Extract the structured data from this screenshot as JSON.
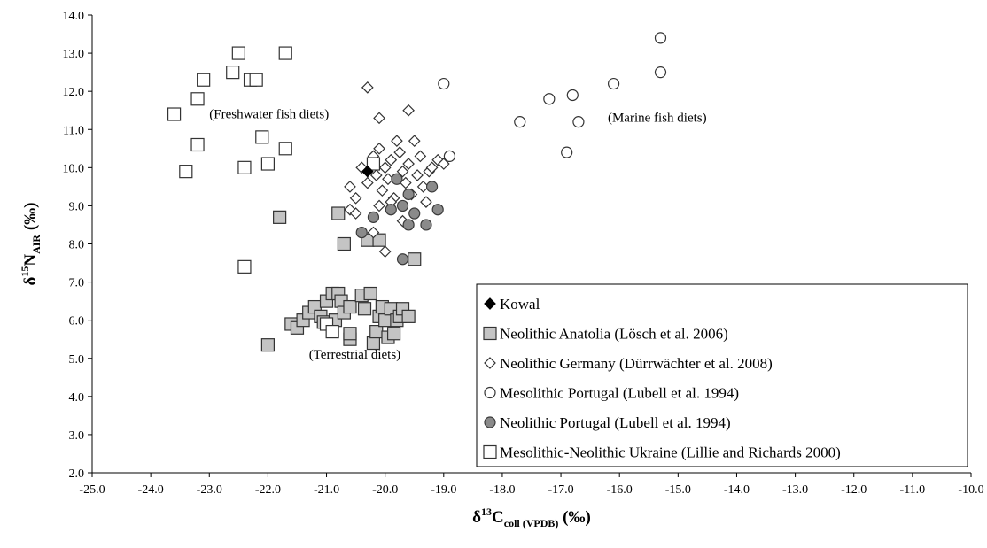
{
  "chart_data": {
    "type": "scatter",
    "title": "",
    "xlabel": {
      "base": "δ",
      "sup": "13",
      "main": "C",
      "sub": "coll (VPDB)",
      "unit": " (‰)"
    },
    "ylabel": {
      "base": "δ",
      "sup": "15",
      "main": "N",
      "sub": "AIR",
      "unit": " (‰)"
    },
    "xlim": [
      -25.0,
      -10.0
    ],
    "ylim": [
      2.0,
      14.0
    ],
    "x_ticks": [
      "-25.0",
      "-24.0",
      "-23.0",
      "-22.0",
      "-21.0",
      "-20.0",
      "-19.0",
      "-18.0",
      "-17.0",
      "-16.0",
      "-15.0",
      "-14.0",
      "-13.0",
      "-12.0",
      "-11.0",
      "-10.0"
    ],
    "y_ticks": [
      "2.0",
      "3.0",
      "4.0",
      "5.0",
      "6.0",
      "7.0",
      "8.0",
      "9.0",
      "10.0",
      "11.0",
      "12.0",
      "13.0",
      "14.0"
    ],
    "grid": false,
    "legend_position": "bottom-right",
    "annotations": [
      {
        "text": "(Freshwater fish diets)",
        "x": -23.0,
        "y": 11.3
      },
      {
        "text": "(Marine fish diets)",
        "x": -16.2,
        "y": 11.2
      },
      {
        "text": "(Terrestrial diets)",
        "x": -21.3,
        "y": 5.0
      }
    ],
    "series": [
      {
        "name": "Kowal",
        "marker": "diamond",
        "fill": "#000000",
        "stroke": "#000000",
        "points": [
          [
            -20.3,
            9.9
          ]
        ]
      },
      {
        "name": "Neolithic Anatolia (Lösch et al. 2006)",
        "marker": "square",
        "fill": "#c4c4c4",
        "stroke": "#333333",
        "points": [
          [
            -21.8,
            8.7
          ],
          [
            -20.8,
            8.8
          ],
          [
            -20.7,
            8.0
          ],
          [
            -20.3,
            8.1
          ],
          [
            -20.1,
            8.1
          ],
          [
            -19.5,
            7.6
          ],
          [
            -22.0,
            5.35
          ],
          [
            -21.6,
            5.9
          ],
          [
            -21.5,
            5.8
          ],
          [
            -21.4,
            6.0
          ],
          [
            -21.3,
            6.2
          ],
          [
            -21.2,
            6.35
          ],
          [
            -21.1,
            6.1
          ],
          [
            -21.05,
            5.95
          ],
          [
            -21.0,
            6.5
          ],
          [
            -20.9,
            6.7
          ],
          [
            -20.85,
            6.0
          ],
          [
            -20.8,
            6.7
          ],
          [
            -20.75,
            6.5
          ],
          [
            -20.7,
            6.2
          ],
          [
            -20.6,
            6.35
          ],
          [
            -20.6,
            5.5
          ],
          [
            -20.6,
            5.65
          ],
          [
            -20.4,
            6.65
          ],
          [
            -20.35,
            6.3
          ],
          [
            -20.25,
            6.7
          ],
          [
            -20.2,
            5.4
          ],
          [
            -20.15,
            5.7
          ],
          [
            -20.1,
            6.1
          ],
          [
            -20.05,
            6.35
          ],
          [
            -20.0,
            6.0
          ],
          [
            -19.95,
            5.55
          ],
          [
            -19.9,
            6.3
          ],
          [
            -19.85,
            5.65
          ],
          [
            -19.8,
            6.0
          ],
          [
            -19.75,
            6.1
          ],
          [
            -19.7,
            6.3
          ],
          [
            -19.6,
            6.1
          ]
        ]
      },
      {
        "name": "Neolithic Germany (Dürrwächter et al. 2008)",
        "marker": "diamond-open",
        "fill": "#ffffff",
        "stroke": "#333333",
        "points": [
          [
            -20.3,
            12.1
          ],
          [
            -20.1,
            11.3
          ],
          [
            -19.6,
            11.5
          ],
          [
            -20.6,
            9.5
          ],
          [
            -20.5,
            9.2
          ],
          [
            -20.4,
            10.0
          ],
          [
            -20.3,
            9.6
          ],
          [
            -20.2,
            10.3
          ],
          [
            -20.15,
            9.8
          ],
          [
            -20.1,
            10.5
          ],
          [
            -20.05,
            9.4
          ],
          [
            -20.0,
            10.0
          ],
          [
            -19.95,
            9.7
          ],
          [
            -19.9,
            10.2
          ],
          [
            -19.85,
            9.2
          ],
          [
            -19.8,
            10.7
          ],
          [
            -19.75,
            10.4
          ],
          [
            -19.7,
            9.9
          ],
          [
            -19.65,
            9.6
          ],
          [
            -19.6,
            10.1
          ],
          [
            -19.55,
            9.3
          ],
          [
            -19.5,
            10.7
          ],
          [
            -19.45,
            9.8
          ],
          [
            -19.4,
            10.3
          ],
          [
            -19.35,
            9.5
          ],
          [
            -19.3,
            9.1
          ],
          [
            -19.25,
            9.9
          ],
          [
            -19.2,
            10.0
          ],
          [
            -19.1,
            10.2
          ],
          [
            -19.0,
            10.1
          ],
          [
            -20.6,
            8.9
          ],
          [
            -20.5,
            8.8
          ],
          [
            -20.0,
            7.8
          ],
          [
            -20.2,
            8.3
          ],
          [
            -19.7,
            8.6
          ],
          [
            -20.1,
            9.0
          ],
          [
            -19.9,
            9.1
          ]
        ]
      },
      {
        "name": "Mesolithic Portugal (Lubell et al. 1994)",
        "marker": "circle-open",
        "fill": "#ffffff",
        "stroke": "#333333",
        "points": [
          [
            -19.0,
            12.2
          ],
          [
            -18.9,
            10.3
          ],
          [
            -17.7,
            11.2
          ],
          [
            -17.2,
            11.8
          ],
          [
            -16.8,
            11.9
          ],
          [
            -16.7,
            11.2
          ],
          [
            -16.9,
            10.4
          ],
          [
            -16.1,
            12.2
          ],
          [
            -15.3,
            12.5
          ],
          [
            -15.3,
            13.4
          ]
        ]
      },
      {
        "name": "Neolithic Portugal (Lubell et al. 1994)",
        "marker": "circle",
        "fill": "#8a8a8a",
        "stroke": "#3a3a3a",
        "points": [
          [
            -20.4,
            8.3
          ],
          [
            -20.2,
            8.7
          ],
          [
            -19.9,
            8.9
          ],
          [
            -19.8,
            9.7
          ],
          [
            -19.7,
            7.6
          ],
          [
            -19.7,
            9.0
          ],
          [
            -19.6,
            8.5
          ],
          [
            -19.6,
            9.3
          ],
          [
            -19.5,
            8.8
          ],
          [
            -19.3,
            8.5
          ],
          [
            -19.2,
            9.5
          ],
          [
            -19.1,
            8.9
          ]
        ]
      },
      {
        "name": "Mesolithic-Neolithic Ukraine (Lillie and Richards 2000)",
        "marker": "square-open",
        "fill": "#ffffff",
        "stroke": "#333333",
        "points": [
          [
            -23.6,
            11.4
          ],
          [
            -23.4,
            9.9
          ],
          [
            -23.2,
            11.8
          ],
          [
            -23.2,
            10.6
          ],
          [
            -23.1,
            12.3
          ],
          [
            -22.6,
            12.5
          ],
          [
            -22.5,
            13.0
          ],
          [
            -22.4,
            10.0
          ],
          [
            -22.4,
            7.4
          ],
          [
            -22.3,
            12.3
          ],
          [
            -22.2,
            12.3
          ],
          [
            -22.1,
            10.8
          ],
          [
            -22.0,
            10.1
          ],
          [
            -21.7,
            13.0
          ],
          [
            -21.7,
            10.5
          ],
          [
            -20.2,
            10.1
          ],
          [
            -21.0,
            5.9
          ],
          [
            -20.9,
            5.7
          ]
        ]
      }
    ]
  },
  "legend": {
    "items": [
      "Kowal",
      "Neolithic Anatolia (Lösch et al. 2006)",
      "Neolithic Germany (Dürrwächter et al. 2008)",
      "Mesolithic Portugal (Lubell et al. 1994)",
      "Neolithic Portugal (Lubell et al. 1994)",
      "Mesolithic-Neolithic Ukraine (Lillie and Richards 2000)"
    ]
  }
}
